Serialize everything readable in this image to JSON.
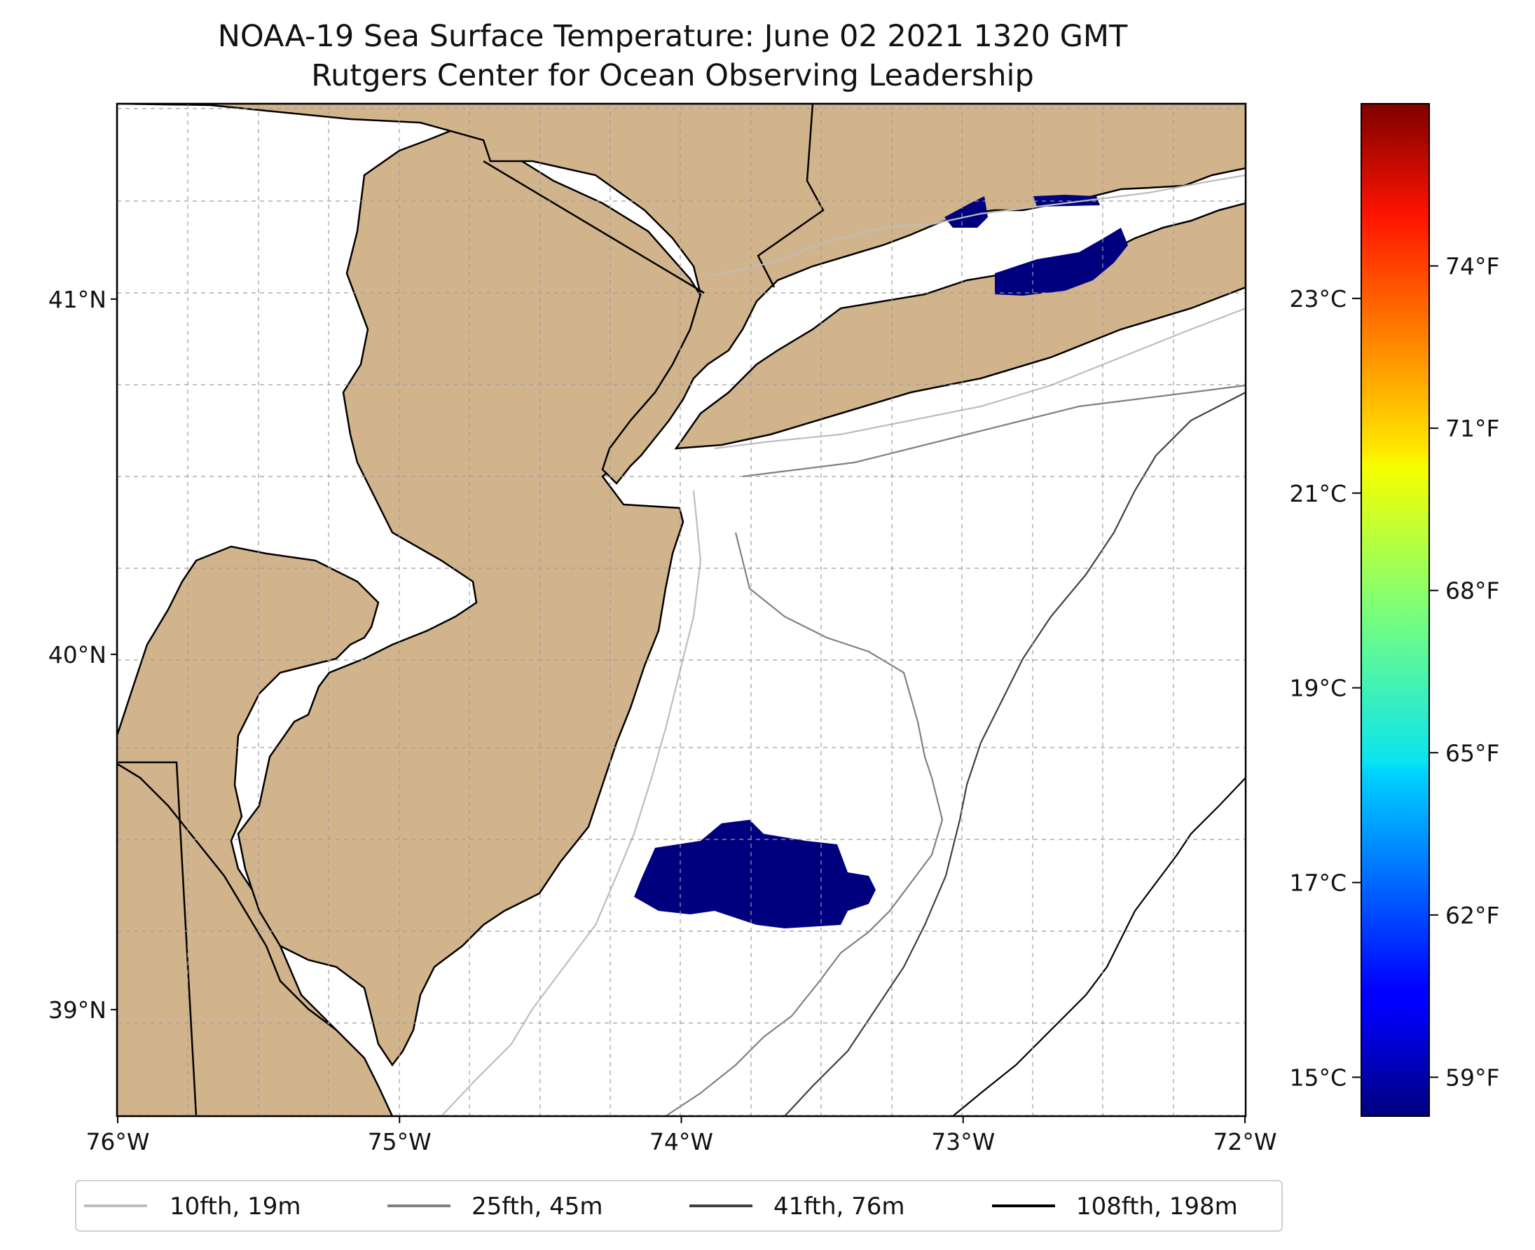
{
  "title": {
    "line1": "NOAA-19 Sea Surface Temperature: June 02 2021 1320 GMT",
    "line2": "Rutgers Center for Ocean Observing Leadership"
  },
  "map": {
    "lon_range": [
      -76,
      -72
    ],
    "lat_range": [
      38.7,
      41.55
    ],
    "lon_ticks": [
      {
        "value": -76,
        "label": "76°W"
      },
      {
        "value": -75,
        "label": "75°W"
      },
      {
        "value": -74,
        "label": "74°W"
      },
      {
        "value": -73,
        "label": "73°W"
      },
      {
        "value": -72,
        "label": "72°W"
      }
    ],
    "lat_ticks": [
      {
        "value": 41,
        "label": "41°N"
      },
      {
        "value": 40,
        "label": "40°N"
      },
      {
        "value": 39,
        "label": "39°N"
      }
    ],
    "land_color": "#d2b48c",
    "ocean_color": "#ffffff",
    "grid": true
  },
  "colorbar": {
    "colormap": "jet",
    "range_c": [
      14.6,
      25.0
    ],
    "celsius_ticks": [
      {
        "value": 15,
        "label": "15°C"
      },
      {
        "value": 17,
        "label": "17°C"
      },
      {
        "value": 19,
        "label": "19°C"
      },
      {
        "value": 21,
        "label": "21°C"
      },
      {
        "value": 23,
        "label": "23°C"
      }
    ],
    "fahrenheit_ticks": [
      {
        "value": 59,
        "label": "59°F"
      },
      {
        "value": 62,
        "label": "62°F"
      },
      {
        "value": 65,
        "label": "65°F"
      },
      {
        "value": 68,
        "label": "68°F"
      },
      {
        "value": 71,
        "label": "71°F"
      },
      {
        "value": 74,
        "label": "74°F"
      }
    ]
  },
  "sst_patches": [
    {
      "region": "Long Island Sound",
      "approx_temp_c": 14.6,
      "color": "#00007f"
    },
    {
      "region": "Offshore southern New Jersey shelf",
      "approx_temp_c": 14.6,
      "color": "#00007f"
    }
  ],
  "legend": {
    "position": "bottom",
    "entries": [
      {
        "label": "10fth, 19m",
        "color": "#bdbdbd"
      },
      {
        "label": "25fth, 45m",
        "color": "#808080"
      },
      {
        "label": "41fth, 76m",
        "color": "#404040"
      },
      {
        "label": "108fth, 198m",
        "color": "#000000"
      }
    ]
  }
}
